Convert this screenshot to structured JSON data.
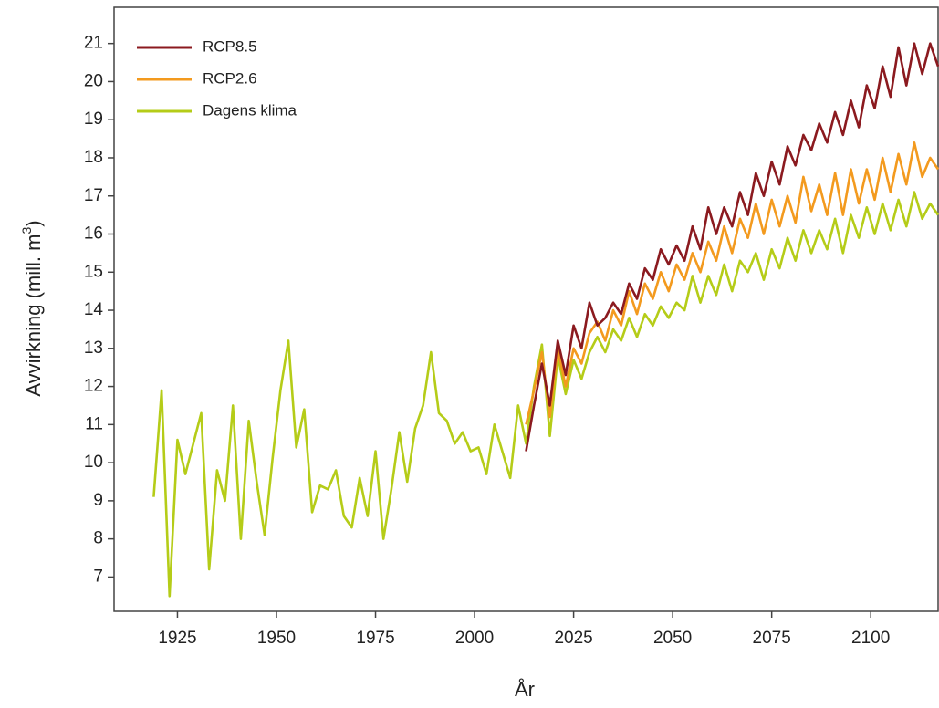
{
  "chart_data": {
    "type": "line",
    "x_label": "År",
    "y_label": {
      "text": "Avvirkning (mill. m",
      "superscript": "3",
      "suffix": ")"
    },
    "xlim": [
      1909,
      2117
    ],
    "ylim": [
      6.1,
      21.95
    ],
    "xticks": [
      1925,
      1950,
      1975,
      2000,
      2025,
      2050,
      2075,
      2100
    ],
    "yticks": [
      7,
      8,
      9,
      10,
      11,
      12,
      13,
      14,
      15,
      16,
      17,
      18,
      19,
      20,
      21
    ],
    "legend": "top-left",
    "x": [
      1919,
      1921,
      1923,
      1925,
      1927,
      1929,
      1931,
      1933,
      1935,
      1937,
      1939,
      1941,
      1943,
      1945,
      1947,
      1949,
      1951,
      1953,
      1955,
      1957,
      1959,
      1961,
      1963,
      1965,
      1967,
      1969,
      1971,
      1973,
      1975,
      1977,
      1979,
      1981,
      1983,
      1985,
      1987,
      1989,
      1991,
      1993,
      1995,
      1997,
      1999,
      2001,
      2003,
      2005,
      2007,
      2009,
      2011,
      2013,
      2015,
      2017,
      2019,
      2021,
      2023,
      2025,
      2027,
      2029,
      2031,
      2033,
      2035,
      2037,
      2039,
      2041,
      2043,
      2045,
      2047,
      2049,
      2051,
      2053,
      2055,
      2057,
      2059,
      2061,
      2063,
      2065,
      2067,
      2069,
      2071,
      2073,
      2075,
      2077,
      2079,
      2081,
      2083,
      2085,
      2087,
      2089,
      2091,
      2093,
      2095,
      2097,
      2099,
      2101,
      2103,
      2105,
      2107,
      2109,
      2111,
      2113,
      2115,
      2117
    ],
    "series": [
      {
        "name": "RCP8.5",
        "color": "#8b1a1f",
        "values": [
          null,
          null,
          null,
          null,
          null,
          null,
          null,
          null,
          null,
          null,
          null,
          null,
          null,
          null,
          null,
          null,
          null,
          null,
          null,
          null,
          null,
          null,
          null,
          null,
          null,
          null,
          null,
          null,
          null,
          null,
          null,
          null,
          null,
          null,
          null,
          null,
          null,
          null,
          null,
          null,
          null,
          null,
          null,
          null,
          null,
          null,
          null,
          10.3,
          11.5,
          12.6,
          11.5,
          13.2,
          12.3,
          13.6,
          13.0,
          14.2,
          13.6,
          13.8,
          14.2,
          13.9,
          14.7,
          14.3,
          15.1,
          14.8,
          15.6,
          15.2,
          15.7,
          15.3,
          16.2,
          15.6,
          16.7,
          16.0,
          16.7,
          16.2,
          17.1,
          16.5,
          17.6,
          17.0,
          17.9,
          17.3,
          18.3,
          17.8,
          18.6,
          18.2,
          18.9,
          18.4,
          19.2,
          18.6,
          19.5,
          18.8,
          19.9,
          19.3,
          20.4,
          19.6,
          20.9,
          19.9,
          21.0,
          20.2,
          21.0,
          20.4
        ]
      },
      {
        "name": "RCP2.6",
        "color": "#f39a1e",
        "values": [
          null,
          null,
          null,
          null,
          null,
          null,
          null,
          null,
          null,
          null,
          null,
          null,
          null,
          null,
          null,
          null,
          null,
          null,
          null,
          null,
          null,
          null,
          null,
          null,
          null,
          null,
          null,
          null,
          null,
          null,
          null,
          null,
          null,
          null,
          null,
          null,
          null,
          null,
          null,
          null,
          null,
          null,
          null,
          null,
          null,
          null,
          null,
          11.0,
          11.9,
          12.9,
          11.2,
          13.0,
          12.0,
          13.0,
          12.6,
          13.4,
          13.7,
          13.2,
          14.0,
          13.6,
          14.5,
          13.9,
          14.7,
          14.3,
          15.0,
          14.5,
          15.2,
          14.8,
          15.5,
          15.0,
          15.8,
          15.3,
          16.2,
          15.5,
          16.4,
          15.9,
          16.8,
          16.0,
          16.9,
          16.2,
          17.0,
          16.3,
          17.5,
          16.6,
          17.3,
          16.5,
          17.6,
          16.5,
          17.7,
          16.8,
          17.7,
          16.9,
          18.0,
          17.1,
          18.1,
          17.3,
          18.4,
          17.5,
          18.0,
          17.7
        ]
      },
      {
        "name": "Dagens klima",
        "color": "#b5cc18",
        "values": [
          9.1,
          11.9,
          6.5,
          10.6,
          9.7,
          10.5,
          11.3,
          7.2,
          9.8,
          9.0,
          11.5,
          8.0,
          11.1,
          9.5,
          8.1,
          10.1,
          11.9,
          13.2,
          10.4,
          11.4,
          8.7,
          9.4,
          9.3,
          9.8,
          8.6,
          8.3,
          9.6,
          8.6,
          10.3,
          8.0,
          9.3,
          10.8,
          9.5,
          10.9,
          11.5,
          12.9,
          11.3,
          11.1,
          10.5,
          10.8,
          10.3,
          10.4,
          9.7,
          11.0,
          10.3,
          9.6,
          11.5,
          10.5,
          12.0,
          13.1,
          10.7,
          12.8,
          11.8,
          12.7,
          12.2,
          12.9,
          13.3,
          12.9,
          13.5,
          13.2,
          13.8,
          13.3,
          13.9,
          13.6,
          14.1,
          13.8,
          14.2,
          14.0,
          14.9,
          14.2,
          14.9,
          14.4,
          15.2,
          14.5,
          15.3,
          15.0,
          15.5,
          14.8,
          15.6,
          15.1,
          15.9,
          15.3,
          16.1,
          15.5,
          16.1,
          15.6,
          16.4,
          15.5,
          16.5,
          15.9,
          16.7,
          16.0,
          16.8,
          16.1,
          16.9,
          16.2,
          17.1,
          16.4,
          16.8,
          16.5
        ]
      }
    ]
  }
}
